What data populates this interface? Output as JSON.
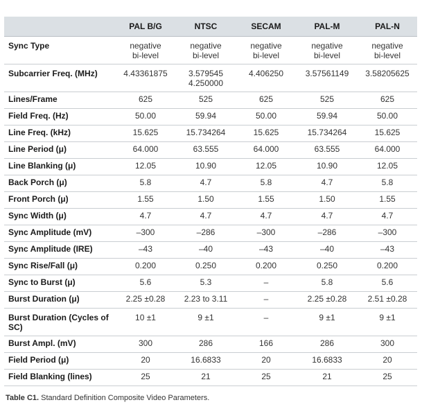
{
  "table": {
    "corner": "",
    "headers": [
      "PAL B/G",
      "NTSC",
      "SECAM",
      "PAL-M",
      "PAL-N"
    ],
    "rows": [
      {
        "param": "Sync Type",
        "values": [
          [
            "negative",
            "bi-level"
          ],
          [
            "negative",
            "bi-level"
          ],
          [
            "negative",
            "bi-level"
          ],
          [
            "negative",
            "bi-level"
          ],
          [
            "negative",
            "bi-level"
          ]
        ]
      },
      {
        "param": "Subcarrier Freq. (MHz)",
        "values": [
          [
            "4.43361875"
          ],
          [
            "3.579545",
            "4.250000"
          ],
          [
            "4.406250"
          ],
          [
            "3.57561149"
          ],
          [
            "3.58205625"
          ]
        ]
      },
      {
        "param": "Lines/Frame",
        "values": [
          [
            "625"
          ],
          [
            "525"
          ],
          [
            "625"
          ],
          [
            "525"
          ],
          [
            "625"
          ]
        ]
      },
      {
        "param": "Field Freq. (Hz)",
        "values": [
          [
            "50.00"
          ],
          [
            "59.94"
          ],
          [
            "50.00"
          ],
          [
            "59.94"
          ],
          [
            "50.00"
          ]
        ]
      },
      {
        "param": "Line Freq. (kHz)",
        "values": [
          [
            "15.625"
          ],
          [
            "15.734264"
          ],
          [
            "15.625"
          ],
          [
            "15.734264"
          ],
          [
            "15.625"
          ]
        ]
      },
      {
        "param": "Line Period (μ)",
        "values": [
          [
            "64.000"
          ],
          [
            "63.555"
          ],
          [
            "64.000"
          ],
          [
            "63.555"
          ],
          [
            "64.000"
          ]
        ]
      },
      {
        "param": "Line Blanking (μ)",
        "values": [
          [
            "12.05"
          ],
          [
            "10.90"
          ],
          [
            "12.05"
          ],
          [
            "10.90"
          ],
          [
            "12.05"
          ]
        ]
      },
      {
        "param": "Back Porch (μ)",
        "values": [
          [
            "5.8"
          ],
          [
            "4.7"
          ],
          [
            "5.8"
          ],
          [
            "4.7"
          ],
          [
            "5.8"
          ]
        ]
      },
      {
        "param": "Front Porch (μ)",
        "values": [
          [
            "1.55"
          ],
          [
            "1.50"
          ],
          [
            "1.55"
          ],
          [
            "1.50"
          ],
          [
            "1.55"
          ]
        ]
      },
      {
        "param": "Sync Width (μ)",
        "values": [
          [
            "4.7"
          ],
          [
            "4.7"
          ],
          [
            "4.7"
          ],
          [
            "4.7"
          ],
          [
            "4.7"
          ]
        ]
      },
      {
        "param": "Sync Amplitude (mV)",
        "values": [
          [
            "–300"
          ],
          [
            "–286"
          ],
          [
            "–300"
          ],
          [
            "–286"
          ],
          [
            "–300"
          ]
        ]
      },
      {
        "param": "Sync Amplitude (IRE)",
        "values": [
          [
            "–43"
          ],
          [
            "–40"
          ],
          [
            "–43"
          ],
          [
            "–40"
          ],
          [
            "–43"
          ]
        ]
      },
      {
        "param": "Sync Rise/Fall (μ)",
        "values": [
          [
            "0.200"
          ],
          [
            "0.250"
          ],
          [
            "0.200"
          ],
          [
            "0.250"
          ],
          [
            "0.200"
          ]
        ]
      },
      {
        "param": "Sync to Burst (μ)",
        "values": [
          [
            "5.6"
          ],
          [
            "5.3"
          ],
          [
            "–"
          ],
          [
            "5.8"
          ],
          [
            "5.6"
          ]
        ]
      },
      {
        "param": "Burst Duration (μ)",
        "values": [
          [
            "2.25 ±0.28"
          ],
          [
            "2.23 to 3.11"
          ],
          [
            "–"
          ],
          [
            "2.25 ±0.28"
          ],
          [
            "2.51 ±0.28"
          ]
        ]
      },
      {
        "param": "Burst Duration (Cycles of SC)",
        "values": [
          [
            "10 ±1"
          ],
          [
            "9 ±1"
          ],
          [
            "–"
          ],
          [
            "9 ±1"
          ],
          [
            "9 ±1"
          ]
        ]
      },
      {
        "param": "Burst Ampl. (mV)",
        "values": [
          [
            "300"
          ],
          [
            "286"
          ],
          [
            "166"
          ],
          [
            "286"
          ],
          [
            "300"
          ]
        ]
      },
      {
        "param": "Field Period (μ)",
        "values": [
          [
            "20"
          ],
          [
            "16.6833"
          ],
          [
            "20"
          ],
          [
            "16.6833"
          ],
          [
            "20"
          ]
        ]
      },
      {
        "param": "Field Blanking (lines)",
        "values": [
          [
            "25"
          ],
          [
            "21"
          ],
          [
            "25"
          ],
          [
            "21"
          ],
          [
            "25"
          ]
        ]
      }
    ]
  },
  "caption": {
    "label": "Table C1.",
    "text": " Standard Definition Composite Video Parameters."
  }
}
